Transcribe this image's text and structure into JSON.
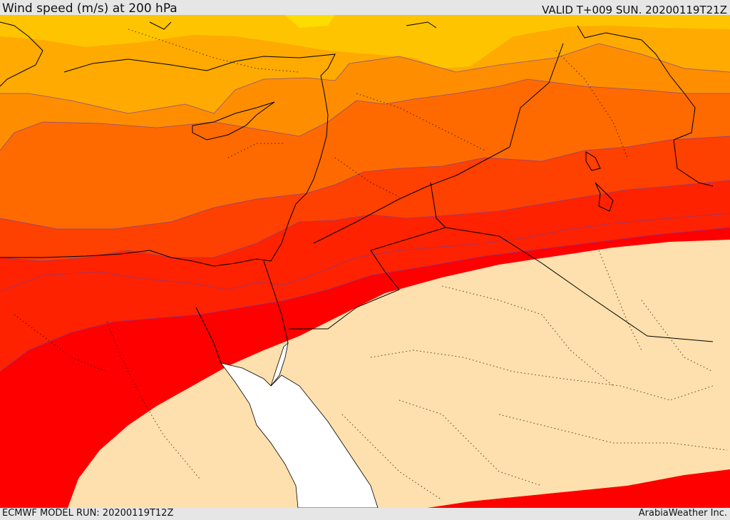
{
  "header": {
    "title": "Wind speed (m/s) at 200 hPa",
    "valid": "VALID T+009 SUN. 20200119T21Z"
  },
  "footer": {
    "model_run": "ECMWF MODEL RUN: 20200119T12Z",
    "credit": "ArabiaWeather Inc."
  },
  "map": {
    "variable": "wind speed",
    "level": "200 hPa",
    "colors": {
      "calm": "#fde0ad",
      "band_1": "#fe0000",
      "band_2": "#fe2200",
      "band_3": "#fe4000",
      "band_4": "#fe6a00",
      "band_5": "#fe8d00",
      "band_6": "#feaa00",
      "band_7": "#fec400",
      "band_8": "#fedc00",
      "sea": "#ffffff",
      "contour_line": "#6a3dad",
      "coastline": "#000000"
    }
  }
}
